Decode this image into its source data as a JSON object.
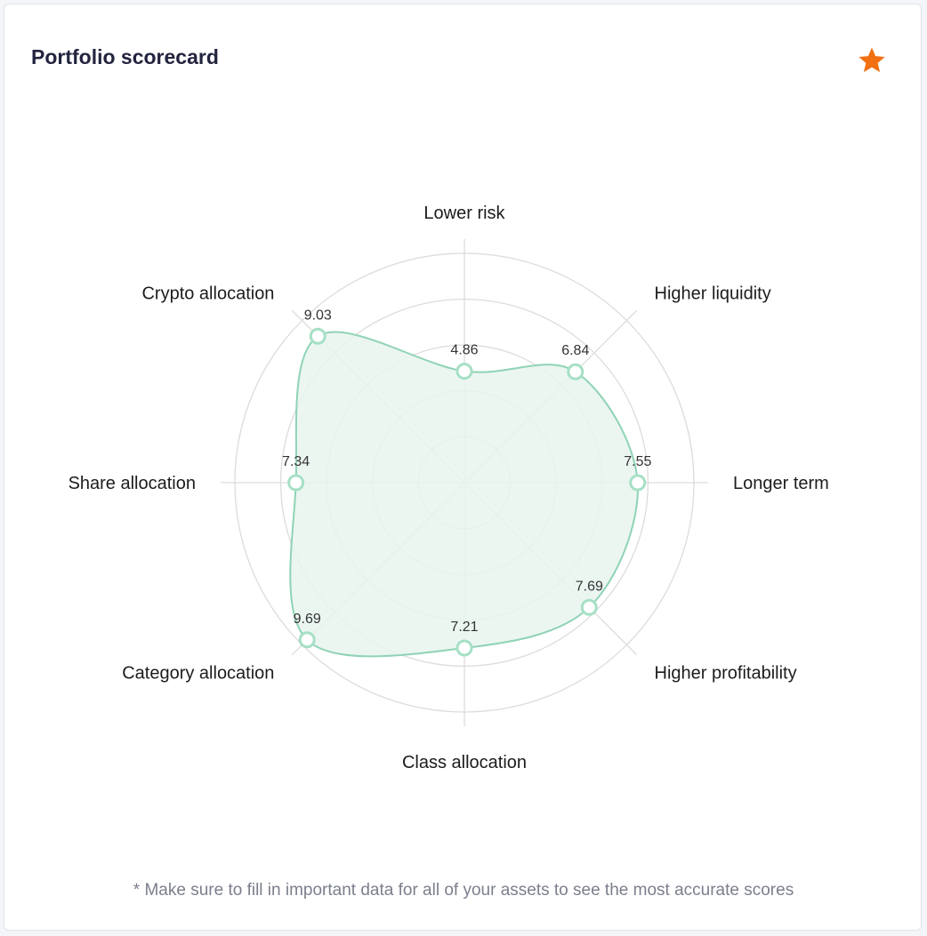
{
  "card": {
    "title": "Portfolio scorecard",
    "star_icon": "star-icon",
    "star_color": "#f07012",
    "footnote": "* Make sure to fill in important data for all of your assets to see the most accurate scores"
  },
  "chart_data": {
    "type": "radar",
    "categories": [
      "Lower risk",
      "Higher liquidity",
      "Longer term",
      "Higher profitability",
      "Class allocation",
      "Category allocation",
      "Share allocation",
      "Crypto allocation"
    ],
    "series": [
      {
        "values": [
          4.86,
          6.84,
          7.55,
          7.69,
          7.21,
          9.69,
          7.34,
          9.03
        ],
        "value_labels": [
          "4.86",
          "6.84",
          "7.55",
          "7.69",
          "7.21",
          "9.69",
          "7.34",
          "9.03"
        ]
      }
    ],
    "rmax": 10,
    "grid": true,
    "legend": "none",
    "colors": {
      "line": "#8fd3b5",
      "fill": "#e7f4ee",
      "point_stroke": "#a6e0c5",
      "grid": "#dcdcdc"
    }
  }
}
